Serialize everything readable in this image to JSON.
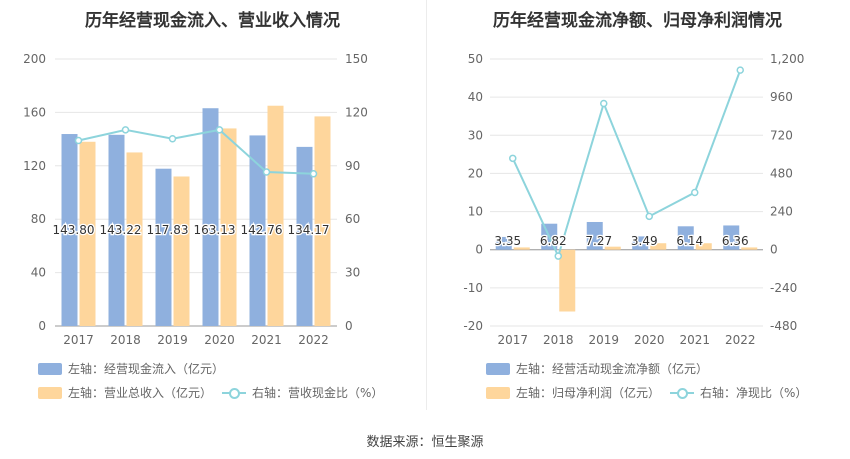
{
  "chart_data": [
    {
      "type": "bar",
      "title": "历年经营现金流入、营业收入情况",
      "categories": [
        "2017",
        "2018",
        "2019",
        "2020",
        "2021",
        "2022"
      ],
      "left_axis": {
        "min": 0,
        "max": 200,
        "ticks": [
          "0",
          "40",
          "80",
          "120",
          "160",
          "200"
        ]
      },
      "right_axis": {
        "min": 0,
        "max": 150,
        "ticks": [
          "0",
          "30",
          "60",
          "90",
          "120",
          "150"
        ]
      },
      "series": [
        {
          "name": "左轴：经营现金流入（亿元）",
          "kind": "bar",
          "axis": "left",
          "color": "#8fb0de",
          "values": [
            143.8,
            143.22,
            117.83,
            163.13,
            142.76,
            134.17
          ],
          "labels": [
            "143.80",
            "143.22",
            "117.83",
            "163.13",
            "142.76",
            "134.17"
          ]
        },
        {
          "name": "左轴：营业总收入（亿元）",
          "kind": "bar",
          "axis": "left",
          "color": "#fed69c",
          "values": [
            138,
            130,
            112,
            148,
            165,
            157
          ]
        },
        {
          "name": "右轴：营收现金比（%）",
          "kind": "line",
          "axis": "right",
          "color": "#8dd4dc",
          "values": [
            104.2,
            110.2,
            105.2,
            110.2,
            86.5,
            85.5
          ]
        }
      ]
    },
    {
      "type": "bar",
      "title": "历年经营现金流净额、归母净利润情况",
      "categories": [
        "2017",
        "2018",
        "2019",
        "2020",
        "2021",
        "2022"
      ],
      "left_axis": {
        "min": -20,
        "max": 50,
        "ticks": [
          "-20",
          "-10",
          "0",
          "10",
          "20",
          "30",
          "40",
          "50"
        ]
      },
      "right_axis": {
        "min": -480,
        "max": 1200,
        "ticks": [
          "-480",
          "-240",
          "0",
          "240",
          "480",
          "720",
          "960",
          "1,200"
        ]
      },
      "series": [
        {
          "name": "左轴：经营活动现金流净额（亿元）",
          "kind": "bar",
          "axis": "left",
          "color": "#8fb0de",
          "values": [
            3.35,
            6.82,
            7.27,
            3.49,
            6.14,
            6.36
          ],
          "labels": [
            "3.35",
            "6.82",
            "7.27",
            "3.49",
            "6.14",
            "6.36"
          ]
        },
        {
          "name": "左轴：归母净利润（亿元）",
          "kind": "bar",
          "axis": "left",
          "color": "#fed69c",
          "values": [
            0.6,
            -16.2,
            0.8,
            1.7,
            1.7,
            0.6
          ]
        },
        {
          "name": "右轴：净现比（%）",
          "kind": "line",
          "axis": "right",
          "color": "#8dd4dc",
          "values": [
            575,
            -40,
            920,
            210,
            360,
            1130
          ]
        }
      ]
    }
  ],
  "source_text": "数据来源：恒生聚源"
}
